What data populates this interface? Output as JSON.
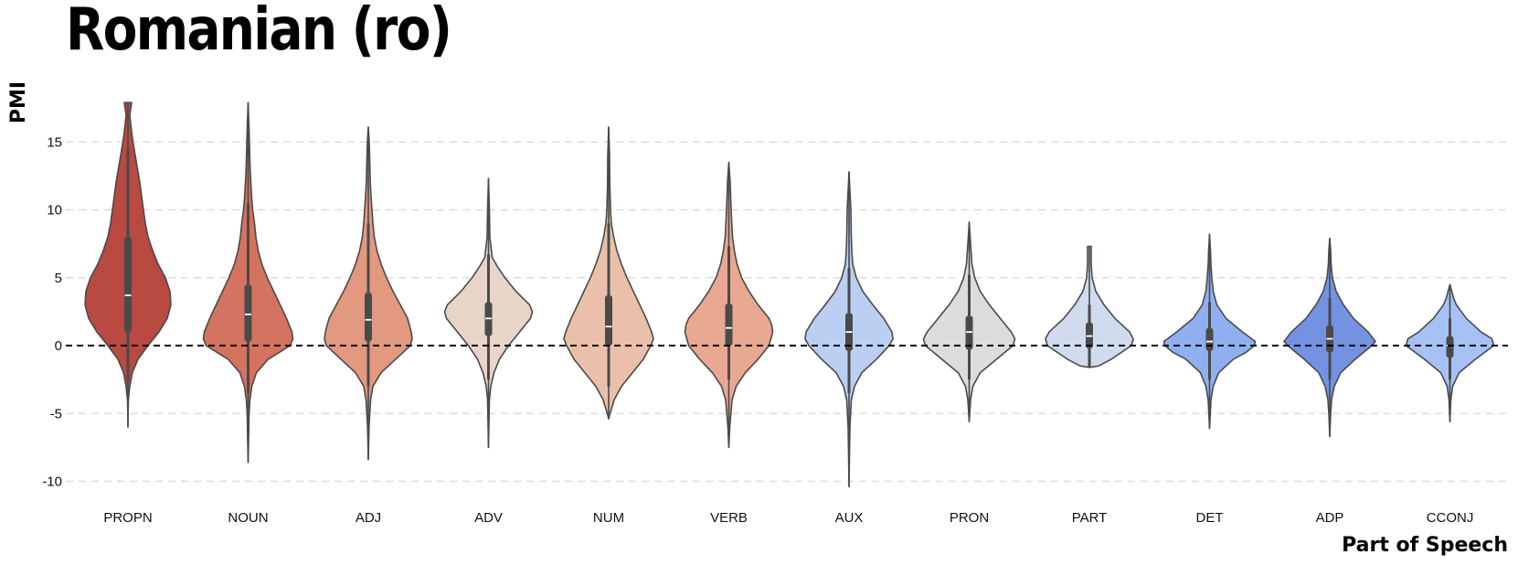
{
  "chart_data": {
    "type": "violin",
    "title": "Romanian (ro)",
    "xlabel": "Part of Speech",
    "ylabel": "PMI",
    "ylim": [
      -11,
      18
    ],
    "yticks": [
      -10,
      -5,
      0,
      5,
      10,
      15
    ],
    "grid": "horizontal-dashed",
    "reference_line": 0,
    "categories": [
      "PROPN",
      "NOUN",
      "ADJ",
      "ADV",
      "NUM",
      "VERB",
      "AUX",
      "PRON",
      "PART",
      "DET",
      "ADP",
      "CCONJ"
    ],
    "series": [
      {
        "name": "PROPN",
        "color": "#b84a42",
        "min": -6.0,
        "max": 17.9,
        "q1": 1.0,
        "median": 3.7,
        "q3": 8.0,
        "wlow": -2.5,
        "whigh": 14.5,
        "profile": [
          [
            -6.0,
            0.0
          ],
          [
            -5.0,
            0.1
          ],
          [
            -4.0,
            0.5
          ],
          [
            -3.0,
            2.0
          ],
          [
            -2.0,
            4.8
          ],
          [
            -1.0,
            11.0
          ],
          [
            0.0,
            22.0
          ],
          [
            1.0,
            34.0
          ],
          [
            2.0,
            43.0
          ],
          [
            3.0,
            47.0
          ],
          [
            4.0,
            46.0
          ],
          [
            5.0,
            41.0
          ],
          [
            6.0,
            33.0
          ],
          [
            7.0,
            27.0
          ],
          [
            8.0,
            22.0
          ],
          [
            9.0,
            19.0
          ],
          [
            10.0,
            17.0
          ],
          [
            11.0,
            15.0
          ],
          [
            12.0,
            13.0
          ],
          [
            13.0,
            10.5
          ],
          [
            14.0,
            8.0
          ],
          [
            15.0,
            5.5
          ],
          [
            16.0,
            3.5
          ],
          [
            17.0,
            2.0
          ],
          [
            17.9,
            4.0
          ]
        ]
      },
      {
        "name": "NOUN",
        "color": "#d4735f",
        "min": -8.6,
        "max": 17.9,
        "q1": 0.3,
        "median": 2.3,
        "q3": 4.5,
        "wlow": -3.5,
        "whigh": 10.5,
        "profile": [
          [
            -8.6,
            0.0
          ],
          [
            -7.0,
            0.5
          ],
          [
            -5.0,
            1.0
          ],
          [
            -4.0,
            2.0
          ],
          [
            -3.0,
            4.0
          ],
          [
            -2.0,
            9.0
          ],
          [
            -1.0,
            22.0
          ],
          [
            0.0,
            46.0
          ],
          [
            0.5,
            49.0
          ],
          [
            1.0,
            48.0
          ],
          [
            2.0,
            42.0
          ],
          [
            3.0,
            35.0
          ],
          [
            4.0,
            28.0
          ],
          [
            5.0,
            21.0
          ],
          [
            6.0,
            15.0
          ],
          [
            7.0,
            11.0
          ],
          [
            8.0,
            8.5
          ],
          [
            9.0,
            7.0
          ],
          [
            10.0,
            5.0
          ],
          [
            11.0,
            3.8
          ],
          [
            12.0,
            3.0
          ],
          [
            13.0,
            2.2
          ],
          [
            15.0,
            1.4
          ],
          [
            16.0,
            1.0
          ],
          [
            17.9,
            0.0
          ]
        ]
      },
      {
        "name": "ADJ",
        "color": "#e39880",
        "min": -8.4,
        "max": 16.1,
        "q1": 0.3,
        "median": 1.9,
        "q3": 3.9,
        "wlow": -3.0,
        "whigh": 9.0,
        "profile": [
          [
            -8.4,
            0.0
          ],
          [
            -6.0,
            0.8
          ],
          [
            -4.0,
            2.5
          ],
          [
            -3.0,
            5.0
          ],
          [
            -2.0,
            14.0
          ],
          [
            -1.0,
            30.0
          ],
          [
            0.0,
            46.0
          ],
          [
            0.5,
            48.0
          ],
          [
            1.0,
            47.0
          ],
          [
            2.0,
            43.0
          ],
          [
            3.0,
            35.0
          ],
          [
            4.0,
            27.0
          ],
          [
            5.0,
            20.0
          ],
          [
            6.0,
            14.0
          ],
          [
            7.0,
            9.5
          ],
          [
            8.0,
            6.5
          ],
          [
            9.0,
            5.0
          ],
          [
            10.0,
            4.0
          ],
          [
            11.0,
            3.0
          ],
          [
            12.0,
            2.2
          ],
          [
            13.0,
            1.8
          ],
          [
            14.0,
            1.4
          ],
          [
            15.0,
            1.0
          ],
          [
            16.1,
            0.0
          ]
        ]
      },
      {
        "name": "ADV",
        "color": "#e8d4c9",
        "min": -7.5,
        "max": 12.3,
        "q1": 0.7,
        "median": 2.0,
        "q3": 3.2,
        "wlow": -2.5,
        "whigh": 6.7,
        "profile": [
          [
            -7.5,
            0.0
          ],
          [
            -4.0,
            1.0
          ],
          [
            -3.0,
            2.5
          ],
          [
            -2.0,
            6.0
          ],
          [
            -1.0,
            12.0
          ],
          [
            0.0,
            22.0
          ],
          [
            1.0,
            34.0
          ],
          [
            2.0,
            46.0
          ],
          [
            2.5,
            48.0
          ],
          [
            3.0,
            45.0
          ],
          [
            4.0,
            30.0
          ],
          [
            5.0,
            18.0
          ],
          [
            5.8,
            10.0
          ],
          [
            6.5,
            4.0
          ],
          [
            8.0,
            1.5
          ],
          [
            10.0,
            1.0
          ],
          [
            12.3,
            0.0
          ]
        ]
      },
      {
        "name": "NUM",
        "color": "#ebc0aa",
        "min": -5.4,
        "max": 16.1,
        "q1": 0.0,
        "median": 1.4,
        "q3": 3.7,
        "wlow": -3.0,
        "whigh": 9.0,
        "profile": [
          [
            -5.4,
            0.0
          ],
          [
            -5.0,
            1.5
          ],
          [
            -4.0,
            6.0
          ],
          [
            -3.0,
            14.0
          ],
          [
            -2.0,
            26.0
          ],
          [
            -1.0,
            38.0
          ],
          [
            0.0,
            46.0
          ],
          [
            0.5,
            49.0
          ],
          [
            1.0,
            47.0
          ],
          [
            2.0,
            41.0
          ],
          [
            3.0,
            34.0
          ],
          [
            4.0,
            27.0
          ],
          [
            5.0,
            20.0
          ],
          [
            6.0,
            14.0
          ],
          [
            7.0,
            9.0
          ],
          [
            8.0,
            5.5
          ],
          [
            9.0,
            3.0
          ],
          [
            10.0,
            2.0
          ],
          [
            12.0,
            1.2
          ],
          [
            14.0,
            1.0
          ],
          [
            16.1,
            0.0
          ]
        ]
      },
      {
        "name": "VERB",
        "color": "#e8a892",
        "min": -7.5,
        "max": 13.5,
        "q1": 0.0,
        "median": 1.3,
        "q3": 3.1,
        "wlow": -2.5,
        "whigh": 7.3,
        "profile": [
          [
            -7.5,
            0.0
          ],
          [
            -6.0,
            1.0
          ],
          [
            -4.0,
            3.5
          ],
          [
            -3.0,
            8.0
          ],
          [
            -2.0,
            18.0
          ],
          [
            -1.0,
            32.0
          ],
          [
            0.0,
            44.0
          ],
          [
            1.0,
            48.0
          ],
          [
            1.5,
            47.0
          ],
          [
            2.0,
            44.0
          ],
          [
            3.0,
            32.0
          ],
          [
            4.0,
            22.0
          ],
          [
            5.0,
            14.0
          ],
          [
            6.0,
            9.0
          ],
          [
            7.0,
            6.0
          ],
          [
            8.0,
            4.0
          ],
          [
            10.0,
            2.5
          ],
          [
            12.0,
            1.5
          ],
          [
            13.5,
            0.0
          ]
        ]
      },
      {
        "name": "AUX",
        "color": "#bacff2",
        "min": -10.4,
        "max": 12.8,
        "q1": -0.4,
        "median": 1.0,
        "q3": 2.4,
        "wlow": -3.5,
        "whigh": 5.7,
        "profile": [
          [
            -10.4,
            0.0
          ],
          [
            -8.0,
            0.5
          ],
          [
            -6.0,
            1.0
          ],
          [
            -4.0,
            2.5
          ],
          [
            -3.0,
            6.0
          ],
          [
            -2.0,
            14.0
          ],
          [
            -1.0,
            30.0
          ],
          [
            0.0,
            44.0
          ],
          [
            0.5,
            48.0
          ],
          [
            1.0,
            47.0
          ],
          [
            2.0,
            38.0
          ],
          [
            3.0,
            26.0
          ],
          [
            4.0,
            15.0
          ],
          [
            5.0,
            8.0
          ],
          [
            6.0,
            4.0
          ],
          [
            7.0,
            3.0
          ],
          [
            8.0,
            2.5
          ],
          [
            10.0,
            2.0
          ],
          [
            12.8,
            0.0
          ]
        ]
      },
      {
        "name": "PRON",
        "color": "#dcdcdc",
        "min": -5.6,
        "max": 9.1,
        "q1": -0.3,
        "median": 1.0,
        "q3": 2.2,
        "wlow": -2.5,
        "whigh": 5.2,
        "profile": [
          [
            -5.6,
            0.0
          ],
          [
            -4.0,
            1.5
          ],
          [
            -3.0,
            4.0
          ],
          [
            -2.0,
            12.0
          ],
          [
            -1.0,
            30.0
          ],
          [
            0.0,
            48.0
          ],
          [
            0.5,
            50.0
          ],
          [
            1.0,
            46.0
          ],
          [
            2.0,
            34.0
          ],
          [
            3.0,
            22.0
          ],
          [
            4.0,
            12.0
          ],
          [
            5.0,
            6.0
          ],
          [
            6.0,
            3.0
          ],
          [
            7.0,
            2.0
          ],
          [
            8.0,
            1.0
          ],
          [
            9.1,
            0.0
          ]
        ]
      },
      {
        "name": "PART",
        "color": "#d0dbee",
        "min": -1.6,
        "max": 7.3,
        "q1": -0.2,
        "median": 0.7,
        "q3": 1.7,
        "wlow": -1.6,
        "whigh": 3.0,
        "profile": [
          [
            -1.6,
            0.0
          ],
          [
            -1.5,
            10.0
          ],
          [
            -1.0,
            24.0
          ],
          [
            0.0,
            46.0
          ],
          [
            0.5,
            48.0
          ],
          [
            1.0,
            44.0
          ],
          [
            2.0,
            28.0
          ],
          [
            3.0,
            16.0
          ],
          [
            4.0,
            7.0
          ],
          [
            5.0,
            3.0
          ],
          [
            6.0,
            2.0
          ],
          [
            7.3,
            2.0
          ]
        ]
      },
      {
        "name": "DET",
        "color": "#90aff0",
        "min": -6.1,
        "max": 8.2,
        "q1": -0.4,
        "median": 0.3,
        "q3": 1.3,
        "wlow": -2.5,
        "whigh": 3.2,
        "profile": [
          [
            -6.1,
            0.0
          ],
          [
            -5.0,
            0.8
          ],
          [
            -4.0,
            1.5
          ],
          [
            -3.0,
            4.0
          ],
          [
            -2.0,
            10.0
          ],
          [
            -1.0,
            26.0
          ],
          [
            -0.5,
            40.0
          ],
          [
            0.0,
            49.0
          ],
          [
            0.3,
            50.0
          ],
          [
            1.0,
            36.0
          ],
          [
            2.0,
            18.0
          ],
          [
            3.0,
            8.0
          ],
          [
            4.0,
            4.0
          ],
          [
            5.0,
            2.5
          ],
          [
            6.0,
            1.5
          ],
          [
            7.0,
            1.0
          ],
          [
            8.2,
            0.0
          ]
        ]
      },
      {
        "name": "ADP",
        "color": "#7393e2",
        "min": -6.7,
        "max": 7.9,
        "q1": -0.5,
        "median": 0.5,
        "q3": 1.5,
        "wlow": -2.5,
        "whigh": 3.5,
        "profile": [
          [
            -6.7,
            0.0
          ],
          [
            -5.0,
            1.0
          ],
          [
            -4.0,
            2.0
          ],
          [
            -3.0,
            5.0
          ],
          [
            -2.0,
            12.0
          ],
          [
            -1.0,
            28.0
          ],
          [
            0.0,
            46.0
          ],
          [
            0.3,
            50.0
          ],
          [
            1.0,
            42.0
          ],
          [
            2.0,
            26.0
          ],
          [
            3.0,
            15.0
          ],
          [
            4.0,
            7.0
          ],
          [
            5.0,
            3.0
          ],
          [
            6.0,
            1.5
          ],
          [
            7.0,
            1.0
          ],
          [
            7.9,
            0.0
          ]
        ]
      },
      {
        "name": "CCONJ",
        "color": "#a6c1f4",
        "min": -5.6,
        "max": 4.5,
        "q1": -0.9,
        "median": 0.0,
        "q3": 0.7,
        "wlow": -2.5,
        "whigh": 2.0,
        "profile": [
          [
            -5.6,
            0.0
          ],
          [
            -4.0,
            1.0
          ],
          [
            -3.0,
            3.0
          ],
          [
            -2.0,
            10.0
          ],
          [
            -1.0,
            28.0
          ],
          [
            0.0,
            48.0
          ],
          [
            0.5,
            46.0
          ],
          [
            1.0,
            34.0
          ],
          [
            2.0,
            18.0
          ],
          [
            3.0,
            7.0
          ],
          [
            3.5,
            4.0
          ],
          [
            4.0,
            2.0
          ],
          [
            4.5,
            0.0
          ]
        ]
      }
    ]
  }
}
